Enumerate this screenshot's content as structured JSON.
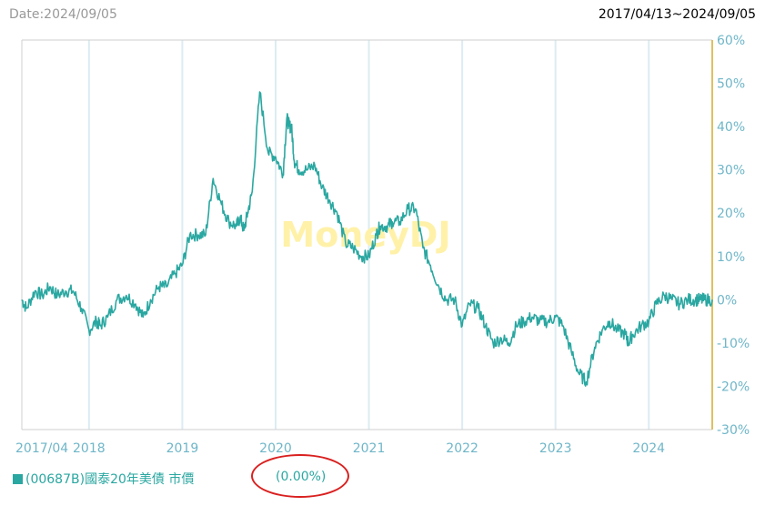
{
  "header": {
    "date_label": "Date:2024/09/05",
    "range_label": "2017/04/13~2024/09/05"
  },
  "watermark": "MoneyDJ",
  "legend": {
    "series_label": "(00687B)國泰20年美債 市價",
    "value_label": "(0.00%)"
  },
  "colors": {
    "series": "#2aa7a1",
    "grid": "#dcecf2",
    "right_axis": "#e0c060",
    "annotation": "#d9201f",
    "watermark": "#fff1a8"
  },
  "chart_data": {
    "type": "line",
    "title": "",
    "xlabel": "",
    "ylabel": "",
    "x_ticks": [
      "2017/04",
      "2018",
      "2019",
      "2020",
      "2021",
      "2022",
      "2023",
      "2024"
    ],
    "x_tick_years": [
      2017.28,
      2018.0,
      2019.0,
      2020.0,
      2021.0,
      2022.0,
      2023.0,
      2024.0
    ],
    "xlim": [
      2017.28,
      2024.68
    ],
    "y_ticks": [
      "60%",
      "50%",
      "40%",
      "30%",
      "20%",
      "10%",
      "0%",
      "-10%",
      "-20%",
      "-30%"
    ],
    "y_tick_values": [
      60,
      50,
      40,
      30,
      20,
      10,
      0,
      -10,
      -20,
      -30
    ],
    "ylim": [
      -30,
      60
    ],
    "y_axis_side": "right",
    "grid": "vertical",
    "series": [
      {
        "name": "(00687B)國泰20年美債 市價",
        "x": [
          2017.28,
          2017.33,
          2017.42,
          2017.5,
          2017.58,
          2017.66,
          2017.75,
          2017.83,
          2017.92,
          2018.0,
          2018.08,
          2018.12,
          2018.2,
          2018.3,
          2018.4,
          2018.5,
          2018.58,
          2018.66,
          2018.75,
          2018.83,
          2018.92,
          2019.0,
          2019.08,
          2019.17,
          2019.25,
          2019.33,
          2019.42,
          2019.5,
          2019.58,
          2019.62,
          2019.66,
          2019.7,
          2019.75,
          2019.83,
          2019.92,
          2020.0,
          2020.08,
          2020.12,
          2020.15,
          2020.17,
          2020.2,
          2020.25,
          2020.33,
          2020.42,
          2020.5,
          2020.58,
          2020.66,
          2020.75,
          2020.83,
          2020.92,
          2021.0,
          2021.08,
          2021.12,
          2021.2,
          2021.25,
          2021.33,
          2021.42,
          2021.5,
          2021.58,
          2021.66,
          2021.75,
          2021.83,
          2021.92,
          2022.0,
          2022.08,
          2022.17,
          2022.25,
          2022.33,
          2022.42,
          2022.5,
          2022.58,
          2022.66,
          2022.75,
          2022.83,
          2022.92,
          2023.0,
          2023.08,
          2023.17,
          2023.25,
          2023.33,
          2023.42,
          2023.5,
          2023.58,
          2023.66,
          2023.75,
          2023.78,
          2023.83,
          2023.92,
          2024.0,
          2024.08,
          2024.17,
          2024.25,
          2024.33,
          2024.42,
          2024.5,
          2024.55,
          2024.6,
          2024.68
        ],
        "values": [
          0,
          -2,
          2,
          1,
          3,
          1,
          2,
          2,
          -2,
          -7,
          -5,
          -6,
          -4,
          0,
          1,
          -1,
          -4,
          0,
          3,
          3,
          6,
          8,
          15,
          15,
          15,
          28,
          22,
          18,
          17,
          19,
          16,
          20,
          25,
          48,
          34,
          33,
          29,
          42,
          40,
          40,
          32,
          30,
          30,
          31,
          26,
          23,
          20,
          13,
          12,
          10,
          10,
          15,
          17,
          17,
          18,
          18,
          21,
          21,
          12,
          8,
          3,
          0,
          0,
          -6,
          -1,
          -2,
          -6,
          -10,
          -9,
          -10,
          -6,
          -5,
          -4,
          -5,
          -5,
          -4,
          -6,
          -12,
          -17,
          -19,
          -11,
          -7,
          -5,
          -7,
          -8,
          -10,
          -8,
          -6,
          -5,
          -1,
          1,
          0,
          -1,
          0,
          0,
          0,
          0,
          0
        ]
      }
    ]
  }
}
